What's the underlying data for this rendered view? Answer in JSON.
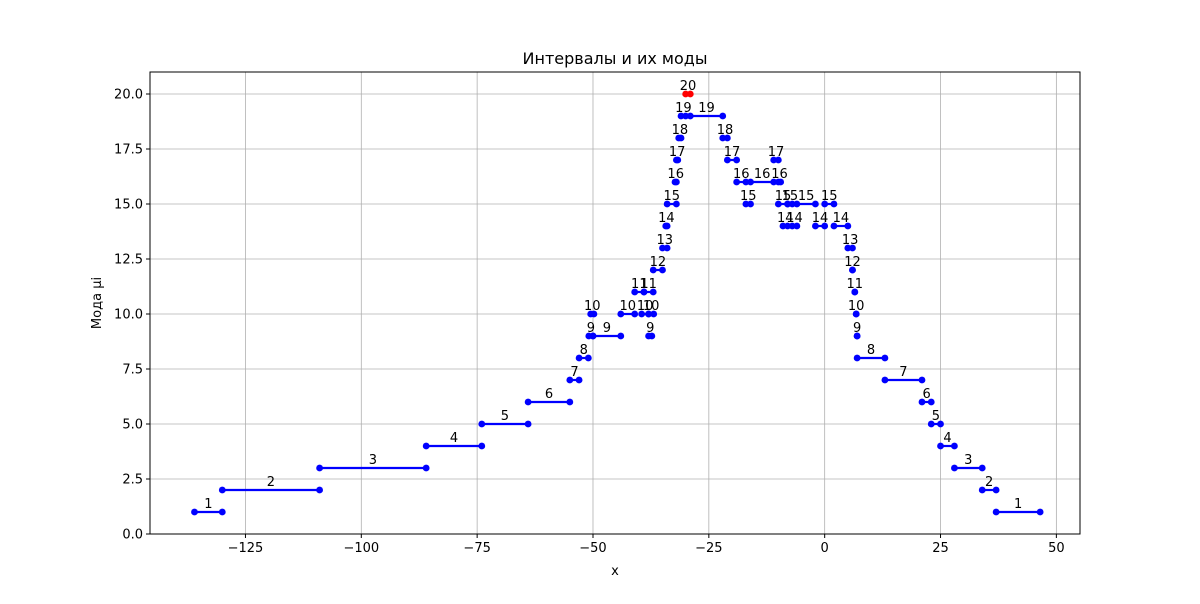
{
  "chart_data": {
    "type": "line",
    "title": "Интервалы и их моды",
    "xlabel": "x",
    "ylabel": "Мода μi",
    "xlim": [
      -145.6,
      55.1
    ],
    "ylim": [
      0,
      21
    ],
    "x_ticks": [
      -125,
      -100,
      -75,
      -50,
      -25,
      0,
      25,
      50
    ],
    "x_tick_labels": [
      "−125",
      "−100",
      "−75",
      "−50",
      "−25",
      "0",
      "25",
      "50"
    ],
    "y_ticks": [
      0,
      2.5,
      5,
      7.5,
      10,
      12.5,
      15,
      17.5,
      20
    ],
    "y_tick_labels": [
      "0.0",
      "2.5",
      "5.0",
      "7.5",
      "10.0",
      "12.5",
      "15.0",
      "17.5",
      "20.0"
    ],
    "grid": true,
    "series": [
      {
        "color": "#0000ff",
        "highlight_color": "#ff0000",
        "intervals": [
          {
            "x1": -136.0,
            "x2": -130.0,
            "mode": 1
          },
          {
            "x1": -130.0,
            "x2": -109.0,
            "mode": 2
          },
          {
            "x1": -109.0,
            "x2": -86.0,
            "mode": 3
          },
          {
            "x1": -86.0,
            "x2": -74.0,
            "mode": 4
          },
          {
            "x1": -74.0,
            "x2": -64.0,
            "mode": 5
          },
          {
            "x1": -64.0,
            "x2": -55.0,
            "mode": 6
          },
          {
            "x1": -55.0,
            "x2": -53.0,
            "mode": 7
          },
          {
            "x1": -53.0,
            "x2": -51.0,
            "mode": 8
          },
          {
            "x1": -50.9,
            "x2": -50.0,
            "mode": 9
          },
          {
            "x1": -50.0,
            "x2": -44.0,
            "mode": 9
          },
          {
            "x1": -50.5,
            "x2": -49.8,
            "mode": 10
          },
          {
            "x1": -44.0,
            "x2": -41.0,
            "mode": 10
          },
          {
            "x1": -39.5,
            "x2": -38.0,
            "mode": 10
          },
          {
            "x1": -38.0,
            "x2": -36.9,
            "mode": 10
          },
          {
            "x1": -38.0,
            "x2": -37.3,
            "mode": 9
          },
          {
            "x1": -41.0,
            "x2": -39.0,
            "mode": 11
          },
          {
            "x1": -39.0,
            "x2": -37.0,
            "mode": 11
          },
          {
            "x1": -37.0,
            "x2": -35.0,
            "mode": 12
          },
          {
            "x1": -35.0,
            "x2": -34.0,
            "mode": 13
          },
          {
            "x1": -34.3,
            "x2": -34.0,
            "mode": 14
          },
          {
            "x1": -34.0,
            "x2": -32.0,
            "mode": 15
          },
          {
            "x1": -32.3,
            "x2": -32.0,
            "mode": 16
          },
          {
            "x1": -32.0,
            "x2": -31.7,
            "mode": 17
          },
          {
            "x1": -31.5,
            "x2": -31.0,
            "mode": 18
          },
          {
            "x1": -31.0,
            "x2": -30.0,
            "mode": 19
          },
          {
            "x1": -30.0,
            "x2": -29.0,
            "mode": 20,
            "highlight": true
          },
          {
            "x1": -29.0,
            "x2": -22.0,
            "mode": 19
          },
          {
            "x1": -22.0,
            "x2": -21.0,
            "mode": 18
          },
          {
            "x1": -21.0,
            "x2": -19.0,
            "mode": 17
          },
          {
            "x1": -19.0,
            "x2": -17.0,
            "mode": 16
          },
          {
            "x1": -17.0,
            "x2": -16.0,
            "mode": 15
          },
          {
            "x1": -16.0,
            "x2": -11.0,
            "mode": 16
          },
          {
            "x1": -11.0,
            "x2": -10.0,
            "mode": 17
          },
          {
            "x1": -10.0,
            "x2": -9.5,
            "mode": 16
          },
          {
            "x1": -10.0,
            "x2": -8.0,
            "mode": 15
          },
          {
            "x1": -9.0,
            "x2": -8.0,
            "mode": 14
          },
          {
            "x1": -8.0,
            "x2": -7.0,
            "mode": 15
          },
          {
            "x1": -7.0,
            "x2": -6.0,
            "mode": 14
          },
          {
            "x1": -6.0,
            "x2": -2.0,
            "mode": 15
          },
          {
            "x1": -2.0,
            "x2": 0.0,
            "mode": 14
          },
          {
            "x1": 0.0,
            "x2": 2.0,
            "mode": 15
          },
          {
            "x1": 2.0,
            "x2": 5.0,
            "mode": 14
          },
          {
            "x1": 5.0,
            "x2": 6.0,
            "mode": 13
          },
          {
            "x1": 6.0,
            "x2": 6.0,
            "mode": 12
          },
          {
            "x1": 6.5,
            "x2": 6.5,
            "mode": 11
          },
          {
            "x1": 6.8,
            "x2": 6.8,
            "mode": 10
          },
          {
            "x1": 7.0,
            "x2": 7.0,
            "mode": 9
          },
          {
            "x1": 7.0,
            "x2": 13.0,
            "mode": 8
          },
          {
            "x1": 13.0,
            "x2": 21.0,
            "mode": 7
          },
          {
            "x1": 21.0,
            "x2": 23.0,
            "mode": 6
          },
          {
            "x1": 23.0,
            "x2": 25.0,
            "mode": 5
          },
          {
            "x1": 25.0,
            "x2": 28.0,
            "mode": 4
          },
          {
            "x1": 28.0,
            "x2": 34.0,
            "mode": 3
          },
          {
            "x1": 34.0,
            "x2": 37.0,
            "mode": 2
          },
          {
            "x1": 37.0,
            "x2": 46.5,
            "mode": 1
          }
        ]
      }
    ]
  }
}
